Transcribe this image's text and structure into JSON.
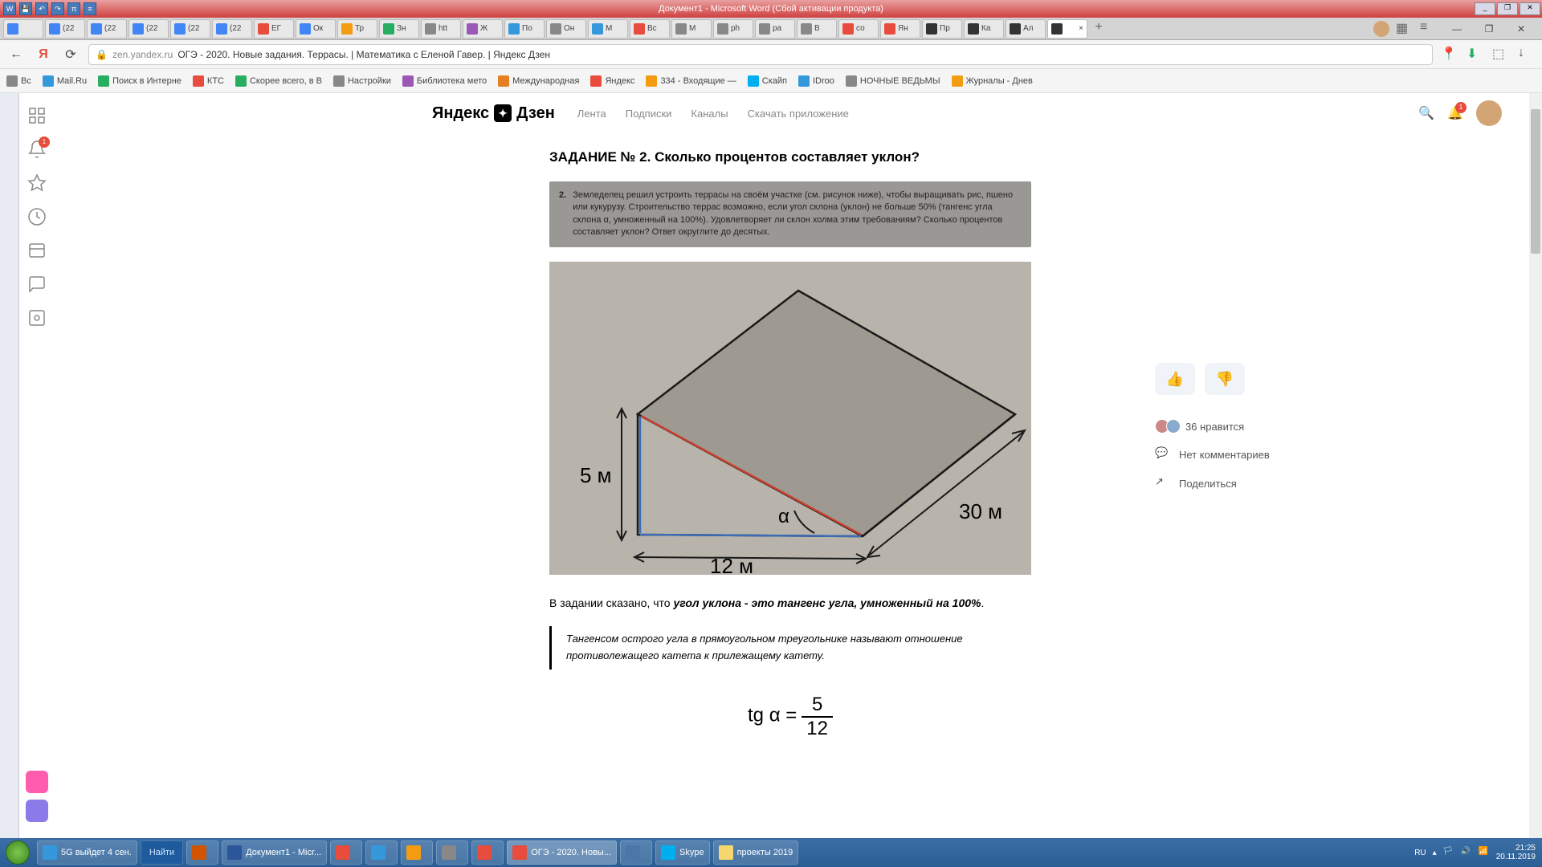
{
  "word": {
    "title": "Документ1 - Microsoft Word (Сбой активации продукта)",
    "qat": [
      "W",
      "💾",
      "↶",
      "↷",
      "π",
      "≡"
    ]
  },
  "tabs": [
    {
      "label": "",
      "color": "#4285f4"
    },
    {
      "label": "(22",
      "color": "#4285f4"
    },
    {
      "label": "(22",
      "color": "#4285f4"
    },
    {
      "label": "(22",
      "color": "#4285f4"
    },
    {
      "label": "(22",
      "color": "#4285f4"
    },
    {
      "label": "(22",
      "color": "#4285f4"
    },
    {
      "label": "ЕГ",
      "color": "#e74c3c"
    },
    {
      "label": "Ок",
      "color": "#4285f4"
    },
    {
      "label": "Тр",
      "color": "#f39c12"
    },
    {
      "label": "Зн",
      "color": "#27ae60"
    },
    {
      "label": "htt",
      "color": "#888"
    },
    {
      "label": "Ж",
      "color": "#9b59b6"
    },
    {
      "label": "По",
      "color": "#3498db"
    },
    {
      "label": "Он",
      "color": "#888"
    },
    {
      "label": "М",
      "color": "#3498db"
    },
    {
      "label": "Вс",
      "color": "#e74c3c"
    },
    {
      "label": "М",
      "color": "#888"
    },
    {
      "label": "ph",
      "color": "#888"
    },
    {
      "label": "ра",
      "color": "#888"
    },
    {
      "label": "В",
      "color": "#888"
    },
    {
      "label": "со",
      "color": "#e74c3c"
    },
    {
      "label": "Ян",
      "color": "#e74c3c"
    },
    {
      "label": "Пр",
      "color": "#333"
    },
    {
      "label": "Ка",
      "color": "#333"
    },
    {
      "label": "Ал",
      "color": "#333"
    },
    {
      "label": "",
      "color": "#333",
      "active": true
    }
  ],
  "address": {
    "domain": "zen.yandex.ru",
    "title": "ОГЭ - 2020. Новые задания. Террасы. | Математика с Еленой Гавер. | Яндекс Дзен"
  },
  "bookmarks": [
    {
      "label": "Вс",
      "color": "#888"
    },
    {
      "label": "Mail.Ru",
      "color": "#3498db"
    },
    {
      "label": "Поиск в Интерне",
      "color": "#27ae60"
    },
    {
      "label": "КТС",
      "color": "#e74c3c"
    },
    {
      "label": "Скорее всего, в В",
      "color": "#27ae60"
    },
    {
      "label": "Настройки",
      "color": "#888"
    },
    {
      "label": "Библиотека мето",
      "color": "#9b59b6"
    },
    {
      "label": "Международная",
      "color": "#e67e22"
    },
    {
      "label": "Яндекс",
      "color": "#e74c3c"
    },
    {
      "label": "334 - Входящие —",
      "color": "#f39c12"
    },
    {
      "label": "Скайп",
      "color": "#00aff0"
    },
    {
      "label": "IDroo",
      "color": "#3498db"
    },
    {
      "label": "НОЧНЫЕ ВЕДЬМЫ",
      "color": "#888"
    },
    {
      "label": "Журналы - Днев",
      "color": "#f39c12"
    }
  ],
  "zen": {
    "logo": "Яндекс",
    "logo2": "Дзен",
    "nav": [
      "Лента",
      "Подписки",
      "Каналы",
      "Скачать приложение"
    ],
    "bell_badge": "1"
  },
  "article": {
    "heading": "ЗАДАНИЕ № 2. Сколько процентов составляет уклон?",
    "problem_num": "2.",
    "problem_text": "Земледелец решил устроить террасы на своём участке (см. рисунок ниже), чтобы выращивать рис, пшено или кукурузу. Строительство террас возможно, если угол склона (уклон) не больше 50% (тангенс угла склона α, умноженный на 100%). Удовлетворяет ли склон холма этим требованиям? Сколько процентов составляет уклон? Ответ округлите до десятых.",
    "diagram": {
      "height_label": "5 м",
      "width_label": "12 м",
      "depth_label": "30 м",
      "angle_label": "α",
      "bg_color": "#b8b4ac",
      "top_fill": "#9e9a92",
      "line_color": "#1a1a1a",
      "blue_line": "#3b6db5",
      "red_line": "#c84030"
    },
    "text_before": "В задании сказано, что ",
    "text_bold": "угол уклона - это тангенс угла, умноженный на 100%",
    "text_after": ".",
    "quote": "Тангенсом острого угла в прямоугольном треугольнике называют отношение противолежащего катета к прилежащему катету.",
    "formula_left": "tg α =",
    "formula_top": "5",
    "formula_bot": "12"
  },
  "reactions": {
    "likes": "36 нравится",
    "comments": "Нет комментариев",
    "share": "Поделиться"
  },
  "taskbar": {
    "items": [
      {
        "label": "5G выйдет 4 сен.",
        "color": "#3498db",
        "wide": true
      },
      {
        "label": "Найти",
        "find": true
      },
      {
        "label": "",
        "color": "#d35400"
      },
      {
        "label": "Документ1 - Micr...",
        "color": "#2b579a",
        "wide": true
      },
      {
        "label": "",
        "color": "#e74c3c"
      },
      {
        "label": "",
        "color": "#3498db"
      },
      {
        "label": "",
        "color": "#f39c12"
      },
      {
        "label": "",
        "color": "#888"
      },
      {
        "label": "",
        "color": "#e74c3c"
      },
      {
        "label": "ОГЭ - 2020. Новы...",
        "color": "#e74c3c",
        "wide": true,
        "active": true
      },
      {
        "label": "",
        "color": "#4a76a8"
      },
      {
        "label": "Skype",
        "color": "#00aff0",
        "wide": true
      },
      {
        "label": "проекты 2019",
        "color": "#f5d76e",
        "wide": true
      }
    ],
    "lang": "RU",
    "time": "21:25",
    "date": "20.11.2019"
  }
}
